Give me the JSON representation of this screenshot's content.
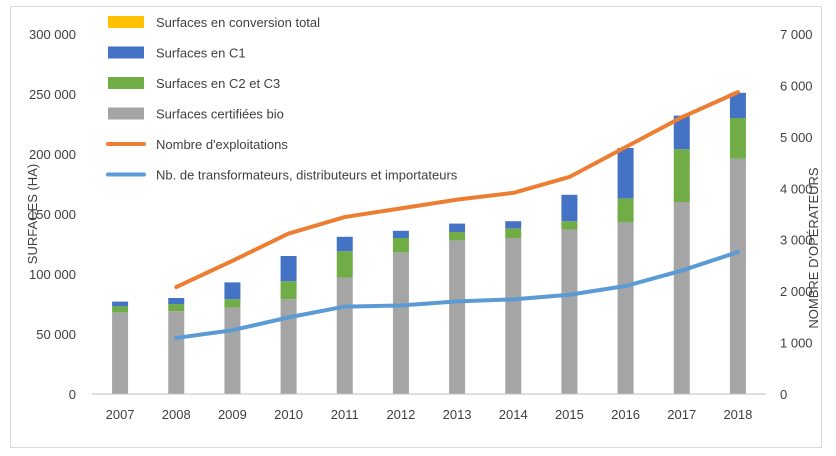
{
  "chart_data": {
    "type": "bar",
    "title": "",
    "categories": [
      "2007",
      "2008",
      "2009",
      "2010",
      "2011",
      "2012",
      "2013",
      "2014",
      "2015",
      "2016",
      "2017",
      "2018"
    ],
    "y_left": {
      "label": "SURFACES (HA)",
      "ylim": [
        0,
        300000
      ],
      "ticks": [
        0,
        50000,
        100000,
        150000,
        200000,
        250000,
        300000
      ],
      "tick_labels": [
        "0",
        "50 000",
        "100 000",
        "150 000",
        "200 000",
        "250 000",
        "300 000"
      ]
    },
    "y_right": {
      "label": "NOMBRE D'OPÉRATEURS",
      "ylim": [
        0,
        7000
      ],
      "ticks": [
        0,
        1000,
        2000,
        3000,
        4000,
        5000,
        6000,
        7000
      ],
      "tick_labels": [
        "0",
        "1 000",
        "2 000",
        "3 000",
        "4 000",
        "5 000",
        "6 000",
        "7 000"
      ]
    },
    "stacked_series": [
      {
        "name": "Surfaces certifiées bio",
        "color": "#a5a5a5",
        "values": [
          68000,
          69000,
          72000,
          79000,
          97000,
          118000,
          128000,
          130000,
          137000,
          143000,
          160000,
          196000
        ]
      },
      {
        "name": "Surfaces en C2 et C3",
        "color": "#70ad47",
        "values": [
          5000,
          6000,
          7000,
          15000,
          22000,
          12000,
          7000,
          8000,
          7000,
          20000,
          44000,
          34000
        ]
      },
      {
        "name": "Surfaces en C1",
        "color": "#4472c4",
        "values": [
          4000,
          5000,
          14000,
          21000,
          12000,
          6000,
          7000,
          6000,
          22000,
          42000,
          28000,
          21000
        ]
      },
      {
        "name": "Surfaces en conversion total",
        "color": "#ffc000",
        "values": [
          0,
          0,
          0,
          0,
          0,
          0,
          0,
          0,
          0,
          0,
          0,
          0
        ]
      }
    ],
    "line_series": [
      {
        "name": "Nombre d'exploitations",
        "color": "#ed7d31",
        "axis": "right",
        "values": [
          null,
          2080,
          2590,
          3120,
          3440,
          3610,
          3780,
          3910,
          4220,
          4800,
          5380,
          5870
        ]
      },
      {
        "name": "Nb. de transformateurs, distributeurs et importateurs",
        "color": "#5b9bd5",
        "axis": "right",
        "values": [
          null,
          1090,
          1240,
          1490,
          1700,
          1720,
          1800,
          1840,
          1930,
          2100,
          2400,
          2760
        ]
      }
    ],
    "legend": {
      "position": "top-left",
      "entries": [
        {
          "label": "Surfaces en conversion total",
          "color": "#ffc000",
          "kind": "box"
        },
        {
          "label": "Surfaces en C1",
          "color": "#4472c4",
          "kind": "box"
        },
        {
          "label": "Surfaces en C2 et C3",
          "color": "#70ad47",
          "kind": "box"
        },
        {
          "label": "Surfaces certifiées bio",
          "color": "#a5a5a5",
          "kind": "box"
        },
        {
          "label": "Nombre d'exploitations",
          "color": "#ed7d31",
          "kind": "line"
        },
        {
          "label": "Nb. de transformateurs, distributeurs et importateurs",
          "color": "#5b9bd5",
          "kind": "line"
        }
      ]
    },
    "grid": false
  }
}
